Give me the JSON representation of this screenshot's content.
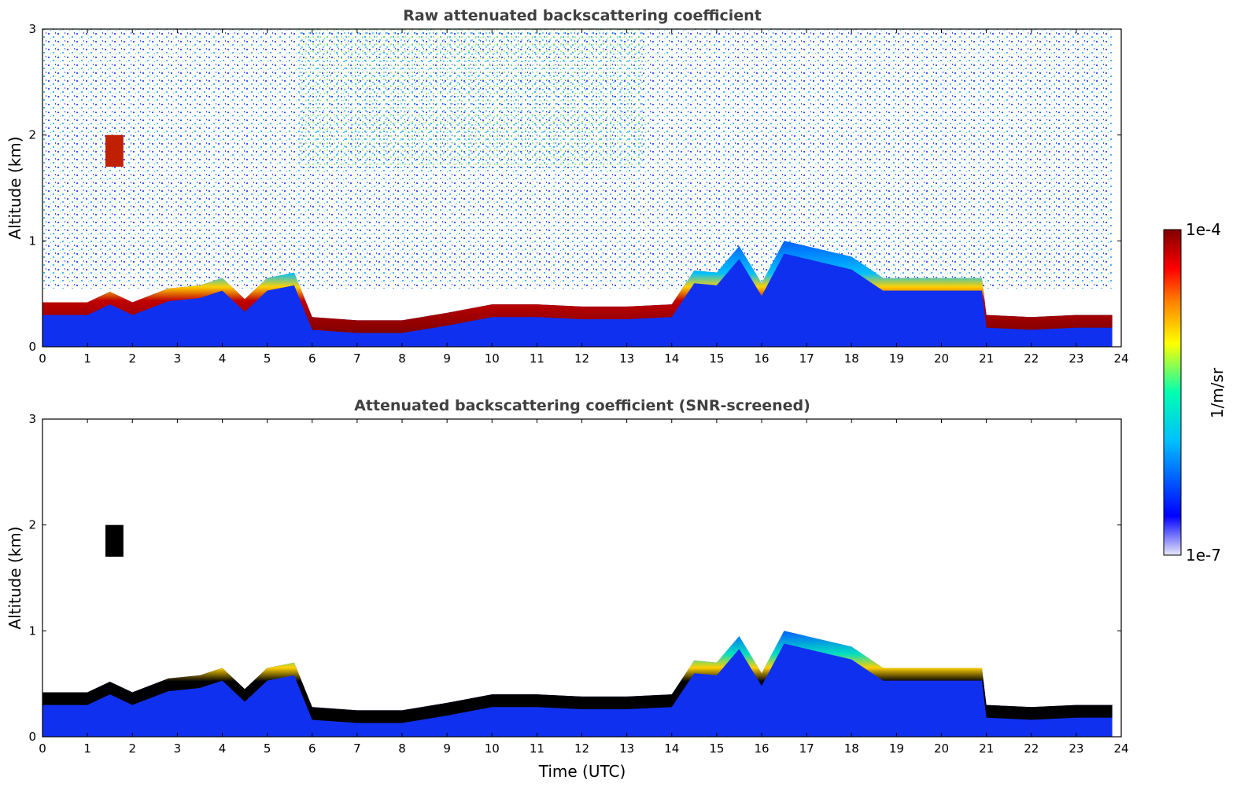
{
  "chart_data": [
    {
      "type": "heatmap",
      "title": "Raw attenuated backscattering coefficient",
      "xlabel": "",
      "ylabel": "Altitude (km)",
      "xlim": [
        0,
        24
      ],
      "ylim": [
        0,
        3
      ],
      "x_ticks": [
        "0",
        "1",
        "2",
        "3",
        "4",
        "5",
        "6",
        "7",
        "8",
        "9",
        "10",
        "11",
        "12",
        "13",
        "14",
        "15",
        "16",
        "17",
        "18",
        "19",
        "20",
        "21",
        "22",
        "23",
        "24"
      ],
      "y_ticks": [
        "0",
        "1",
        "2",
        "3"
      ],
      "layer_top_km": {
        "time_utc": [
          0,
          1,
          1.5,
          2,
          2.8,
          3.5,
          4.0,
          4.5,
          5.0,
          5.6,
          6,
          7,
          8,
          9,
          10,
          11,
          12,
          13,
          14,
          14.5,
          15,
          15.5,
          16,
          16.5,
          17,
          18,
          18.7,
          20.9,
          21,
          22,
          23,
          23.8
        ],
        "altitude_km": [
          0.42,
          0.42,
          0.52,
          0.42,
          0.55,
          0.58,
          0.65,
          0.45,
          0.65,
          0.7,
          0.28,
          0.25,
          0.25,
          0.32,
          0.4,
          0.4,
          0.38,
          0.38,
          0.4,
          0.72,
          0.7,
          0.95,
          0.6,
          1.0,
          0.95,
          0.85,
          0.65,
          0.65,
          0.3,
          0.28,
          0.3,
          0.3
        ]
      },
      "elevated_feature": {
        "time_utc": [
          1.4,
          1.8
        ],
        "altitude_km": [
          1.7,
          2.0
        ]
      }
    },
    {
      "type": "heatmap",
      "title": "Attenuated backscattering coefficient (SNR-screened)",
      "xlabel": "Time (UTC)",
      "ylabel": "Altitude (km)",
      "xlim": [
        0,
        24
      ],
      "ylim": [
        0,
        3
      ],
      "x_ticks": [
        "0",
        "1",
        "2",
        "3",
        "4",
        "5",
        "6",
        "7",
        "8",
        "9",
        "10",
        "11",
        "12",
        "13",
        "14",
        "15",
        "16",
        "17",
        "18",
        "19",
        "20",
        "21",
        "22",
        "23",
        "24"
      ],
      "y_ticks": [
        "0",
        "1",
        "2",
        "3"
      ],
      "layer_top_km": {
        "time_utc": [
          0,
          1,
          1.5,
          2,
          2.8,
          3.5,
          4.0,
          4.5,
          5.0,
          5.6,
          6,
          7,
          8,
          9,
          10,
          11,
          12,
          13,
          14,
          14.5,
          15,
          15.5,
          16,
          16.5,
          17,
          18,
          18.7,
          20.9,
          21,
          22,
          23,
          23.8
        ],
        "altitude_km": [
          0.42,
          0.42,
          0.52,
          0.42,
          0.55,
          0.58,
          0.65,
          0.45,
          0.65,
          0.7,
          0.28,
          0.25,
          0.25,
          0.32,
          0.4,
          0.4,
          0.38,
          0.38,
          0.4,
          0.72,
          0.7,
          0.95,
          0.6,
          1.0,
          0.95,
          0.85,
          0.65,
          0.65,
          0.3,
          0.28,
          0.3,
          0.3
        ]
      },
      "elevated_feature": {
        "time_utc": [
          1.4,
          1.8
        ],
        "altitude_km": [
          1.7,
          2.0
        ]
      }
    }
  ],
  "colorbar": {
    "label": "1/m/sr",
    "max_label": "1e-4",
    "min_label": "1e-7",
    "colors": [
      "#e8e8f8",
      "#0000ff",
      "#00bfff",
      "#00ffb0",
      "#ffff00",
      "#ff8000",
      "#ff0000",
      "#800000"
    ]
  }
}
